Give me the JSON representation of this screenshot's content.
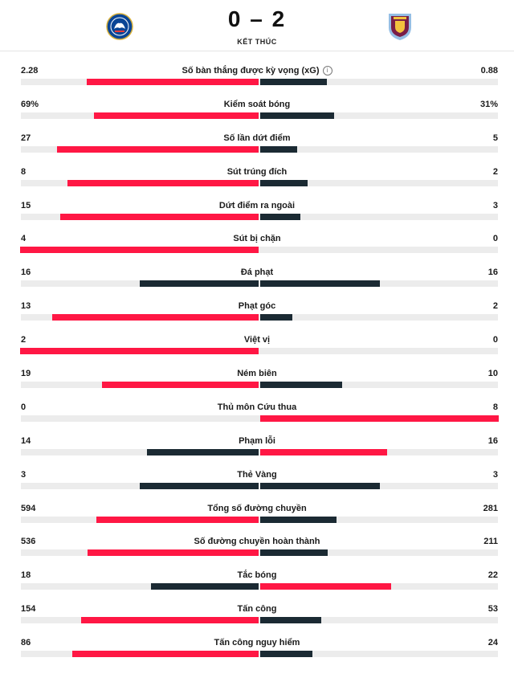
{
  "match": {
    "score": "0 – 2",
    "status": "KẾT THÚC",
    "home_crest": "chelsea-crest-icon",
    "away_crest": "aston-villa-crest-icon"
  },
  "colors": {
    "highlight": "#ff1744",
    "dark": "#1b2a33",
    "track": "#ececec"
  },
  "chart_data": {
    "type": "bar",
    "title": "",
    "categories": [
      "Số bàn thắng được kỳ vọng (xG)",
      "Kiểm soát bóng",
      "Số lần dứt điểm",
      "Sút trúng đích",
      "Dứt điểm ra ngoài",
      "Sút bị chặn",
      "Đá phạt",
      "Phạt góc",
      "Việt vị",
      "Ném biên",
      "Thủ môn Cứu thua",
      "Phạm lỗi",
      "Thẻ Vàng",
      "Tổng số đường chuyền",
      "Số đường chuyền hoàn thành",
      "Tắc bóng",
      "Tấn công",
      "Tấn công nguy hiểm"
    ],
    "series": [
      {
        "values": [
          2.28,
          69,
          27,
          8,
          15,
          4,
          16,
          13,
          2,
          19,
          0,
          14,
          3,
          594,
          536,
          18,
          154,
          86
        ]
      },
      {
        "values": [
          0.88,
          31,
          5,
          2,
          3,
          0,
          16,
          2,
          0,
          10,
          8,
          16,
          3,
          281,
          211,
          22,
          53,
          24
        ]
      }
    ],
    "home_display": [
      "2.28",
      "69%",
      "27",
      "8",
      "15",
      "4",
      "16",
      "13",
      "2",
      "19",
      "0",
      "14",
      "3",
      "594",
      "536",
      "18",
      "154",
      "86"
    ],
    "away_display": [
      "0.88",
      "31%",
      "5",
      "2",
      "3",
      "0",
      "16",
      "2",
      "0",
      "10",
      "8",
      "16",
      "3",
      "281",
      "211",
      "22",
      "53",
      "24"
    ],
    "highlight": [
      "home",
      "home",
      "home",
      "home",
      "home",
      "home",
      "both",
      "home",
      "home",
      "home",
      "away",
      "away",
      "both",
      "home",
      "home",
      "away",
      "home",
      "home"
    ],
    "info_icon_index": 0
  }
}
